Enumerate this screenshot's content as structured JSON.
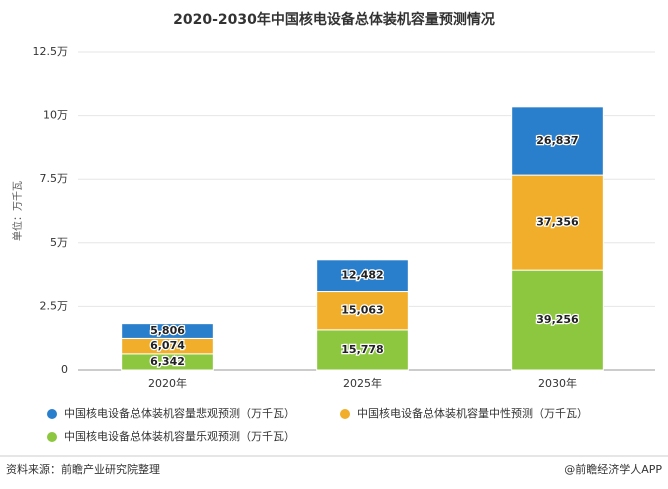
{
  "chart_data": {
    "type": "bar",
    "stacked": true,
    "title": "2020-2030年中国核电设备总体装机容量预测情况",
    "y_label": "单位：万千瓦",
    "categories": [
      "2020年",
      "2025年",
      "2030年"
    ],
    "series": [
      {
        "name": "中国核电设备总体装机容量悲观预测（万千瓦）",
        "color": "#2a7fcc",
        "values": [
          5806,
          12482,
          26837
        ],
        "value_labels": [
          "5,806",
          "12,482",
          "26,837"
        ]
      },
      {
        "name": "中国核电设备总体装机容量中性预测（万千瓦）",
        "color": "#f0ae2a",
        "values": [
          6074,
          15063,
          37356
        ],
        "value_labels": [
          "6,074",
          "15,063",
          "37,356"
        ]
      },
      {
        "name": "中国核电设备总体装机容量乐观预测（万千瓦）",
        "color": "#8dc63f",
        "values": [
          6342,
          15778,
          39256
        ],
        "value_labels": [
          "6,342",
          "15,778",
          "39,256"
        ]
      }
    ],
    "ylim": [
      0,
      125000
    ],
    "yticks": [
      0,
      {
        "value": 25000,
        "label": "2.5万"
      },
      {
        "value": 50000,
        "label": "5万"
      },
      {
        "value": 75000,
        "label": "7.5万"
      },
      {
        "value": 100000,
        "label": "10万"
      },
      {
        "value": 125000,
        "label": "12.5万"
      }
    ],
    "source": "资料来源：前瞻产业研究院整理",
    "credit": "@前瞻经济学人APP"
  }
}
